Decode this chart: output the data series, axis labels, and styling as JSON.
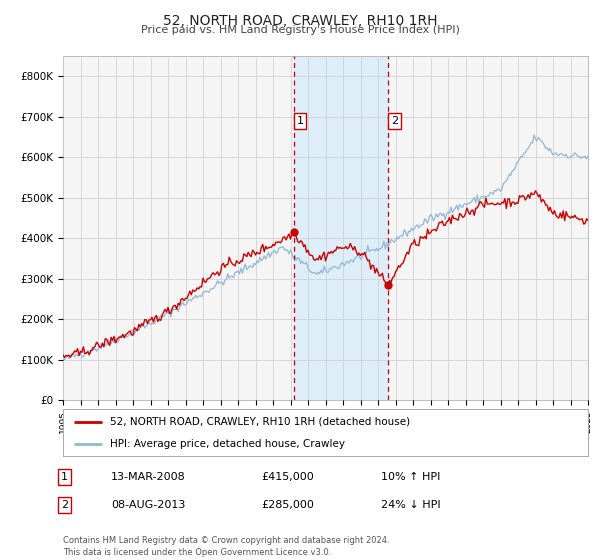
{
  "title": "52, NORTH ROAD, CRAWLEY, RH10 1RH",
  "subtitle": "Price paid vs. HM Land Registry's House Price Index (HPI)",
  "title_fontsize": 10,
  "subtitle_fontsize": 8,
  "background_color": "#ffffff",
  "plot_background_color": "#f5f5f5",
  "grid_color": "#cccccc",
  "hpi_line_color": "#90b8d8",
  "price_line_color": "#cc0000",
  "highlight_fill_color": "#ddeef8",
  "sale1_date_num": 2008.2,
  "sale1_price": 415000,
  "sale1_label": "1",
  "sale2_date_num": 2013.58,
  "sale2_price": 285000,
  "sale2_label": "2",
  "ylim": [
    0,
    850000
  ],
  "xlim_start": 1995,
  "xlim_end": 2025,
  "ytick_labels": [
    "£0",
    "£100K",
    "£200K",
    "£300K",
    "£400K",
    "£500K",
    "£600K",
    "£700K",
    "£800K"
  ],
  "ytick_values": [
    0,
    100000,
    200000,
    300000,
    400000,
    500000,
    600000,
    700000,
    800000
  ],
  "legend_label_red": "52, NORTH ROAD, CRAWLEY, RH10 1RH (detached house)",
  "legend_label_blue": "HPI: Average price, detached house, Crawley",
  "annotation1_date": "13-MAR-2008",
  "annotation1_price": "£415,000",
  "annotation1_hpi": "10% ↑ HPI",
  "annotation2_date": "08-AUG-2013",
  "annotation2_price": "£285,000",
  "annotation2_hpi": "24% ↓ HPI",
  "footer": "Contains HM Land Registry data © Crown copyright and database right 2024.\nThis data is licensed under the Open Government Licence v3.0."
}
